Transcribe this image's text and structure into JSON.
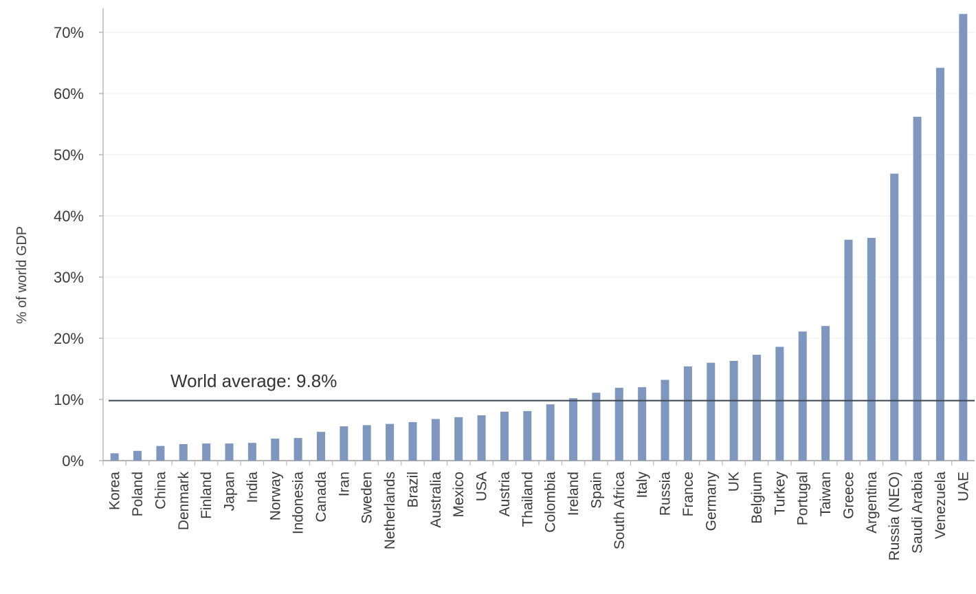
{
  "chart_data": {
    "type": "bar",
    "ylabel": "% of world GDP",
    "ylim": [
      0,
      70
    ],
    "y_ticks": [
      "0%",
      "10%",
      "20%",
      "30%",
      "40%",
      "50%",
      "60%",
      "70%"
    ],
    "y_tick_values": [
      0,
      10,
      20,
      30,
      40,
      50,
      60,
      70
    ],
    "grid": true,
    "bar_color": "#7f96bf",
    "categories": [
      "Korea",
      "Poland",
      "China",
      "Denmark",
      "Finland",
      "Japan",
      "India",
      "Norway",
      "Indonesia",
      "Canada",
      "Iran",
      "Sweden",
      "Netherlands",
      "Brazil",
      "Australia",
      "Mexico",
      "USA",
      "Austria",
      "Thailand",
      "Colombia",
      "Ireland",
      "Spain",
      "South Africa",
      "Italy",
      "Russia",
      "France",
      "Germany",
      "UK",
      "Belgium",
      "Turkey",
      "Portugal",
      "Taiwan",
      "Greece",
      "Argentina",
      "Russia (NEO)",
      "Saudi Arabia",
      "Venezuela",
      "UAE"
    ],
    "values": [
      1.2,
      1.6,
      2.4,
      2.7,
      2.8,
      2.8,
      2.9,
      3.6,
      3.7,
      4.7,
      5.6,
      5.8,
      6.0,
      6.3,
      6.8,
      7.1,
      7.4,
      8.0,
      8.1,
      9.2,
      10.2,
      11.1,
      11.9,
      12.0,
      13.2,
      15.4,
      16.0,
      16.3,
      17.3,
      18.6,
      21.1,
      22.0,
      36.1,
      36.4,
      46.9,
      56.2,
      64.2,
      73.0
    ],
    "reference_line": {
      "value": 9.8,
      "label": "World average: 9.8%",
      "color": "#404a55"
    }
  }
}
